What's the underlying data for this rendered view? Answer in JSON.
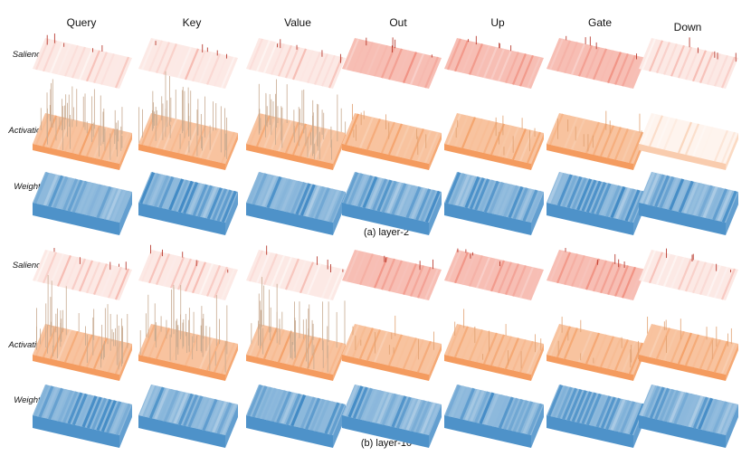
{
  "figure": {
    "columns": [
      "Query",
      "Key",
      "Value",
      "Out",
      "Up",
      "Gate",
      "Down"
    ],
    "panels": [
      {
        "caption": "(a) layer-2",
        "rows": [
          {
            "label": "Salience",
            "kind": "salience"
          },
          {
            "label": "Activation",
            "kind": "activation"
          },
          {
            "label": "Weight",
            "kind": "weight"
          }
        ]
      },
      {
        "caption": "(b) layer-10",
        "rows": [
          {
            "label": "Salience",
            "kind": "salience"
          },
          {
            "label": "Activation",
            "kind": "activation"
          },
          {
            "label": "Weight",
            "kind": "weight"
          }
        ]
      }
    ],
    "colors": {
      "salience": "#e8442a",
      "activation": "#f07a2a",
      "weight": "#2f7fc0"
    }
  }
}
